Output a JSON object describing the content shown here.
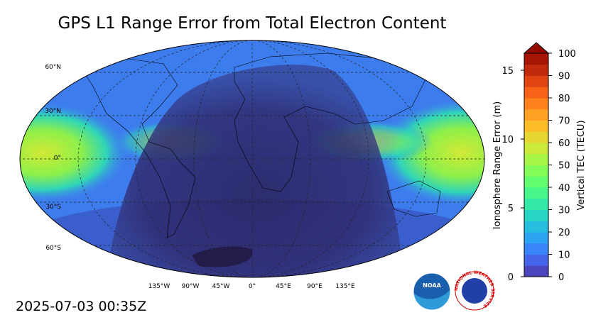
{
  "title": "GPS L1 Range Error from Total Electron Content",
  "timestamp": "2025-07-03 00:35Z",
  "map": {
    "lat_labels": [
      "60°N",
      "30°N",
      "0°",
      "30°S",
      "60°S"
    ],
    "lon_labels": [
      "135°W",
      "90°W",
      "45°W",
      "0°",
      "45°E",
      "90°E",
      "135°E"
    ]
  },
  "colorbar": {
    "left_label": "Ionosphere Range Error (m)",
    "left_ticks": [
      0,
      5,
      10,
      15
    ],
    "left_lim": [
      0,
      16.24
    ],
    "right_label": "Vertical TEC (TECU)",
    "right_ticks": [
      0,
      10,
      20,
      30,
      40,
      50,
      60,
      70,
      80,
      90,
      100
    ],
    "right_lim": [
      0,
      100
    ]
  },
  "logos": {
    "noaa": "NOAA",
    "nws": "NATIONAL WEATHER SERVICE"
  }
}
